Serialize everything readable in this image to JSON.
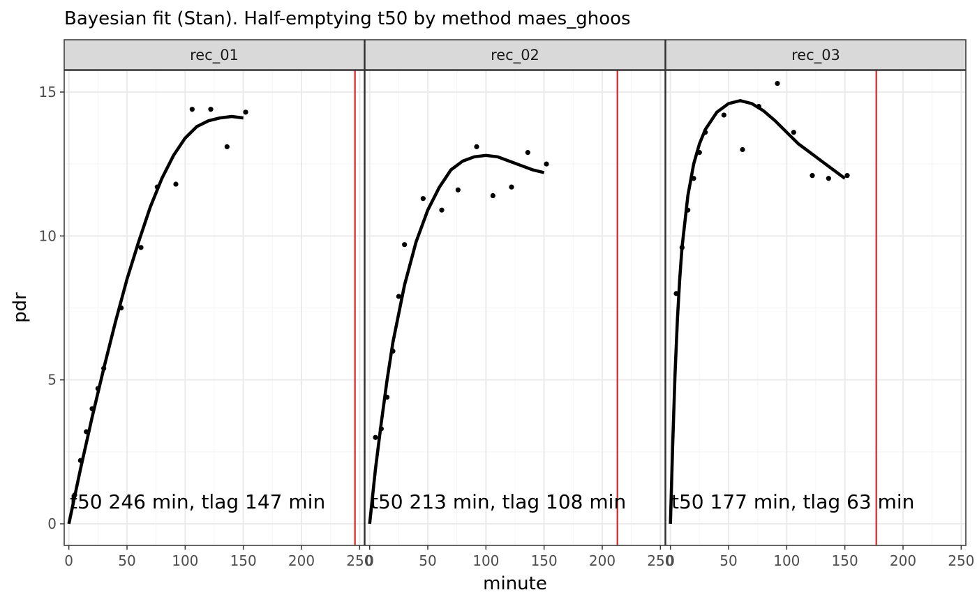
{
  "chart_data": {
    "type": "scatter",
    "title": "Bayesian fit (Stan). Half-emptying t50 by method maes_ghoos",
    "xlabel": "minute",
    "ylabel": "pdr",
    "xlim": [
      -4,
      254
    ],
    "ylim": [
      -0.75,
      15.75
    ],
    "x_ticks": [
      0,
      50,
      100,
      150,
      200,
      250
    ],
    "x_tick_labels": [
      "0",
      "50",
      "100",
      "150",
      "200",
      "250"
    ],
    "y_ticks": [
      0,
      5,
      10,
      15
    ],
    "y_tick_labels": [
      "0",
      "5",
      "10",
      "15"
    ],
    "grid": true,
    "legend": "none",
    "colors": {
      "points": "#000000",
      "fit": "#000000",
      "t50_line": "#d62728",
      "strip": "#d9d9d9"
    },
    "panels": [
      {
        "label": "rec_01",
        "annotation": "t50 246 min,  tlag 147 min",
        "t50": 246,
        "points": [
          [
            5,
            1.0
          ],
          [
            10,
            2.2
          ],
          [
            15,
            3.2
          ],
          [
            20,
            4.0
          ],
          [
            25,
            4.7
          ],
          [
            30,
            5.4
          ],
          [
            45,
            7.5
          ],
          [
            62,
            9.6
          ],
          [
            76,
            11.7
          ],
          [
            92,
            11.8
          ],
          [
            106,
            14.4
          ],
          [
            122,
            14.4
          ],
          [
            136,
            13.1
          ],
          [
            152,
            14.3
          ]
        ],
        "fit": [
          [
            0,
            0
          ],
          [
            10,
            1.9
          ],
          [
            20,
            3.7
          ],
          [
            30,
            5.4
          ],
          [
            40,
            7.0
          ],
          [
            50,
            8.5
          ],
          [
            60,
            9.8
          ],
          [
            70,
            11.0
          ],
          [
            80,
            12.0
          ],
          [
            90,
            12.8
          ],
          [
            100,
            13.4
          ],
          [
            110,
            13.8
          ],
          [
            120,
            14.0
          ],
          [
            130,
            14.1
          ],
          [
            140,
            14.15
          ],
          [
            150,
            14.1
          ]
        ]
      },
      {
        "label": "rec_02",
        "annotation": "t50 213 min,  tlag 108 min",
        "t50": 213,
        "points": [
          [
            5,
            3.0
          ],
          [
            10,
            3.3
          ],
          [
            15,
            4.4
          ],
          [
            20,
            6.0
          ],
          [
            25,
            7.9
          ],
          [
            30,
            9.7
          ],
          [
            46,
            11.3
          ],
          [
            62,
            10.9
          ],
          [
            76,
            11.6
          ],
          [
            92,
            13.1
          ],
          [
            106,
            11.4
          ],
          [
            122,
            11.7
          ],
          [
            136,
            12.9
          ],
          [
            152,
            12.5
          ]
        ],
        "fit": [
          [
            0,
            0
          ],
          [
            5,
            1.9
          ],
          [
            10,
            3.5
          ],
          [
            15,
            5.0
          ],
          [
            20,
            6.3
          ],
          [
            30,
            8.3
          ],
          [
            40,
            9.8
          ],
          [
            50,
            10.9
          ],
          [
            60,
            11.7
          ],
          [
            70,
            12.3
          ],
          [
            80,
            12.6
          ],
          [
            90,
            12.75
          ],
          [
            100,
            12.8
          ],
          [
            110,
            12.75
          ],
          [
            120,
            12.6
          ],
          [
            130,
            12.45
          ],
          [
            140,
            12.3
          ],
          [
            150,
            12.2
          ]
        ]
      },
      {
        "label": "rec_03",
        "annotation": "t50 177 min,  tlag 63 min",
        "t50": 177,
        "points": [
          [
            5,
            8.0
          ],
          [
            10,
            9.6
          ],
          [
            15,
            10.9
          ],
          [
            20,
            12.0
          ],
          [
            25,
            12.9
          ],
          [
            30,
            13.6
          ],
          [
            46,
            14.2
          ],
          [
            62,
            13.0
          ],
          [
            76,
            14.5
          ],
          [
            92,
            15.3
          ],
          [
            106,
            13.6
          ],
          [
            122,
            12.1
          ],
          [
            136,
            12.0
          ],
          [
            152,
            12.1
          ]
        ],
        "fit": [
          [
            0,
            0
          ],
          [
            2,
            2.8
          ],
          [
            4,
            5.2
          ],
          [
            6,
            7.1
          ],
          [
            8,
            8.5
          ],
          [
            10,
            9.6
          ],
          [
            15,
            11.4
          ],
          [
            20,
            12.5
          ],
          [
            25,
            13.2
          ],
          [
            30,
            13.7
          ],
          [
            40,
            14.3
          ],
          [
            50,
            14.6
          ],
          [
            60,
            14.7
          ],
          [
            70,
            14.6
          ],
          [
            80,
            14.35
          ],
          [
            90,
            14.0
          ],
          [
            100,
            13.6
          ],
          [
            110,
            13.2
          ],
          [
            120,
            12.9
          ],
          [
            130,
            12.6
          ],
          [
            140,
            12.3
          ],
          [
            150,
            12.0
          ]
        ]
      }
    ]
  }
}
